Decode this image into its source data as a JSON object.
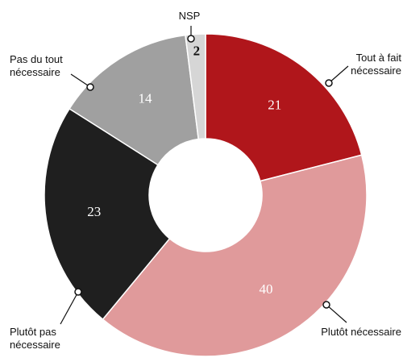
{
  "chart_data": {
    "type": "donut",
    "categories": [
      "Tout à fait nécessaire",
      "Plutôt nécessaire",
      "Plutôt pas nécessaire",
      "Pas du tout nécessaire",
      "NSP"
    ],
    "values": [
      21,
      40,
      23,
      14,
      2
    ],
    "colors": [
      "#b0161b",
      "#e09a9b",
      "#1f1f1f",
      "#a0a0a0",
      "#d6d6d6"
    ]
  }
}
